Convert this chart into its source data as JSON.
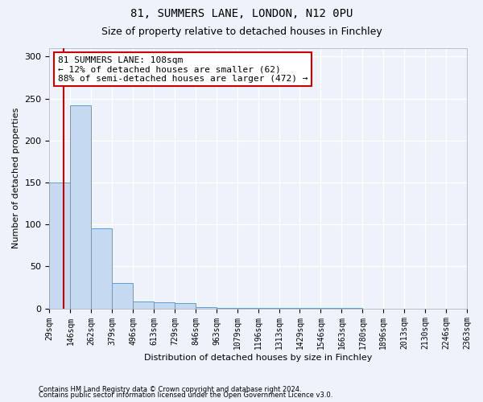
{
  "title1": "81, SUMMERS LANE, LONDON, N12 0PU",
  "title2": "Size of property relative to detached houses in Finchley",
  "xlabel": "Distribution of detached houses by size in Finchley",
  "ylabel": "Number of detached properties",
  "bin_edges": [
    29,
    146,
    262,
    379,
    496,
    613,
    729,
    846,
    963,
    1079,
    1196,
    1313,
    1429,
    1546,
    1663,
    1780,
    1896,
    2013,
    2130,
    2246,
    2363
  ],
  "bin_labels": [
    "29sqm",
    "146sqm",
    "262sqm",
    "379sqm",
    "496sqm",
    "613sqm",
    "729sqm",
    "846sqm",
    "963sqm",
    "1079sqm",
    "1196sqm",
    "1313sqm",
    "1429sqm",
    "1546sqm",
    "1663sqm",
    "1780sqm",
    "1896sqm",
    "2013sqm",
    "2130sqm",
    "2246sqm",
    "2363sqm"
  ],
  "bar_heights": [
    150,
    242,
    95,
    30,
    8,
    7,
    6,
    2,
    1,
    1,
    1,
    1,
    1,
    1,
    1,
    0,
    0,
    0,
    0,
    0
  ],
  "bar_color": "#c5d9f0",
  "bar_edge_color": "#5a9fd4",
  "property_size": 108,
  "annotation_text": "81 SUMMERS LANE: 108sqm\n← 12% of detached houses are smaller (62)\n88% of semi-detached houses are larger (472) →",
  "annotation_box_color": "#ffffff",
  "annotation_border_color": "#cc0000",
  "vline_color": "#cc0000",
  "ylim": [
    0,
    310
  ],
  "yticks": [
    0,
    50,
    100,
    150,
    200,
    250,
    300
  ],
  "footer1": "Contains HM Land Registry data © Crown copyright and database right 2024.",
  "footer2": "Contains public sector information licensed under the Open Government Licence v3.0.",
  "bg_color": "#edf2fb",
  "grid_color": "#ffffff",
  "title1_fontsize": 10,
  "title2_fontsize": 9,
  "xlabel_fontsize": 8,
  "ylabel_fontsize": 8,
  "tick_fontsize": 7,
  "footer_fontsize": 6
}
